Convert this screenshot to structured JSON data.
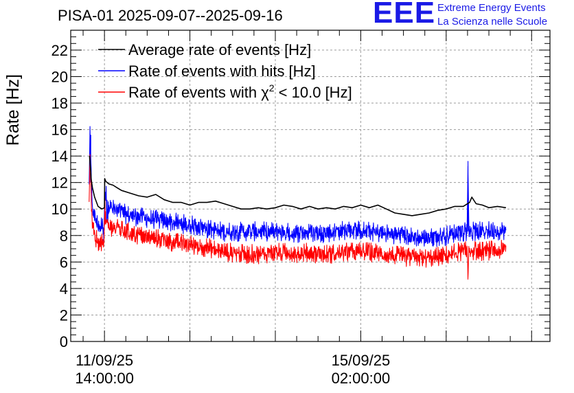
{
  "header": {
    "title": "PISA-01 2025-09-07--2025-09-16",
    "logo_text": "EEE",
    "logo_line1": "Extreme Energy Events",
    "logo_line2": "La Scienza nelle Scuole"
  },
  "colors": {
    "average": "#000000",
    "hits": "#0000ff",
    "chi2": "#ff0000",
    "grid": "#9a9a9a",
    "logo": "#1a1ae6"
  },
  "chart_data": {
    "type": "line",
    "title": "PISA-01 2025-09-07--2025-09-16",
    "ylabel": "Rate [Hz]",
    "xlabel": "",
    "ylim": [
      0,
      23.5
    ],
    "xlim_hours": [
      -7.9,
      104.3
    ],
    "yticks": [
      0,
      2,
      4,
      6,
      8,
      10,
      12,
      14,
      16,
      18,
      20,
      22
    ],
    "xticks": [
      {
        "hours": 0,
        "date": "11/09/25",
        "time": "14:00:00"
      },
      {
        "hours": 60,
        "date": "15/09/25",
        "time": "02:00:00"
      }
    ],
    "grid": true,
    "legend": {
      "placement": "top-left",
      "entries": [
        {
          "series": "average",
          "label_main": "Average rate of events [Hz]",
          "label_sup": "",
          "label_rest": ""
        },
        {
          "series": "hits",
          "label_main": "Rate of events with hits [Hz]",
          "label_sup": "",
          "label_rest": ""
        },
        {
          "series": "chi2",
          "label_main": "Rate of events with χ",
          "label_sup": "2",
          "label_rest": " < 10.0 [Hz]"
        }
      ]
    },
    "series": [
      {
        "name": "Average rate of events [Hz]",
        "key": "average",
        "x_hours": [
          -3.5,
          -3.3,
          -3.1,
          -2.8,
          -2.3,
          -1.5,
          -0.6,
          0.0,
          0.05,
          0.3,
          1,
          2,
          3,
          4,
          6,
          8,
          10,
          12,
          14,
          16,
          18,
          20,
          22,
          24,
          26,
          28,
          30,
          32,
          34,
          36,
          38,
          40,
          42,
          44,
          46,
          48,
          50,
          52,
          54,
          56,
          58,
          60,
          62,
          64,
          66,
          68,
          70,
          72,
          74,
          76,
          78,
          80,
          82,
          84,
          85.5,
          86,
          87,
          88.5,
          90,
          92,
          94
        ],
        "values": [
          14.0,
          13.2,
          12.2,
          11.6,
          10.9,
          10.2,
          10.0,
          10.1,
          12.3,
          12.1,
          11.9,
          11.8,
          11.6,
          11.4,
          11.2,
          11.0,
          10.9,
          11.1,
          10.7,
          10.5,
          10.5,
          10.3,
          10.5,
          10.5,
          10.6,
          10.4,
          10.2,
          10.0,
          10.0,
          10.1,
          10.0,
          10.1,
          10.3,
          10.2,
          10.0,
          10.2,
          10.0,
          10.1,
          10.0,
          10.2,
          10.1,
          10.3,
          10.1,
          10.3,
          10.0,
          9.7,
          9.6,
          9.5,
          9.6,
          9.7,
          9.9,
          10.0,
          10.2,
          10.2,
          10.5,
          10.9,
          10.4,
          10.3,
          10.1,
          10.2,
          10.1
        ]
      },
      {
        "name": "Rate of events with hits [Hz]",
        "key": "hits",
        "x_hours": [
          -3.6,
          -3.4,
          -3.2,
          -3.0,
          -2.7,
          -2.3,
          -1.8,
          -1.2,
          -0.6,
          -0.1,
          0.05,
          0.5,
          2,
          5,
          8,
          12,
          16,
          20,
          24,
          28,
          32,
          36,
          40,
          44,
          48,
          52,
          56,
          60,
          64,
          68,
          72,
          76,
          80,
          83,
          84.9,
          85.1,
          85.3,
          86,
          88,
          91,
          94
        ],
        "values": [
          12.0,
          15.6,
          13.5,
          11.2,
          10.0,
          9.4,
          9.0,
          8.7,
          8.8,
          8.6,
          11.4,
          10.3,
          10.0,
          9.6,
          9.4,
          9.2,
          9.0,
          8.8,
          8.5,
          8.3,
          8.3,
          8.3,
          8.3,
          8.2,
          8.2,
          8.2,
          8.4,
          8.4,
          8.2,
          8.1,
          7.9,
          7.8,
          8.0,
          8.3,
          8.3,
          13.6,
          8.4,
          8.3,
          8.3,
          8.4,
          8.4
        ]
      },
      {
        "name": "Rate of events with χ² < 10.0 [Hz]",
        "key": "chi2",
        "x_hours": [
          -3.6,
          -3.4,
          -3.2,
          -3.0,
          -2.7,
          -2.3,
          -1.8,
          -1.2,
          -0.6,
          -0.1,
          0.05,
          0.5,
          2,
          5,
          8,
          12,
          16,
          20,
          24,
          28,
          32,
          36,
          40,
          44,
          48,
          52,
          56,
          60,
          64,
          68,
          72,
          76,
          80,
          83,
          84.9,
          85.1,
          85.3,
          86,
          88,
          91,
          94
        ],
        "values": [
          10.5,
          13.8,
          11.8,
          9.6,
          8.4,
          7.9,
          7.7,
          7.5,
          7.4,
          7.2,
          9.6,
          8.9,
          8.6,
          8.3,
          8.0,
          7.8,
          7.5,
          7.3,
          7.1,
          6.8,
          6.6,
          6.6,
          6.7,
          6.7,
          6.7,
          6.6,
          6.7,
          6.8,
          6.7,
          6.5,
          6.3,
          6.3,
          6.5,
          6.8,
          6.8,
          4.8,
          6.9,
          6.9,
          6.8,
          6.9,
          6.9
        ]
      }
    ]
  }
}
